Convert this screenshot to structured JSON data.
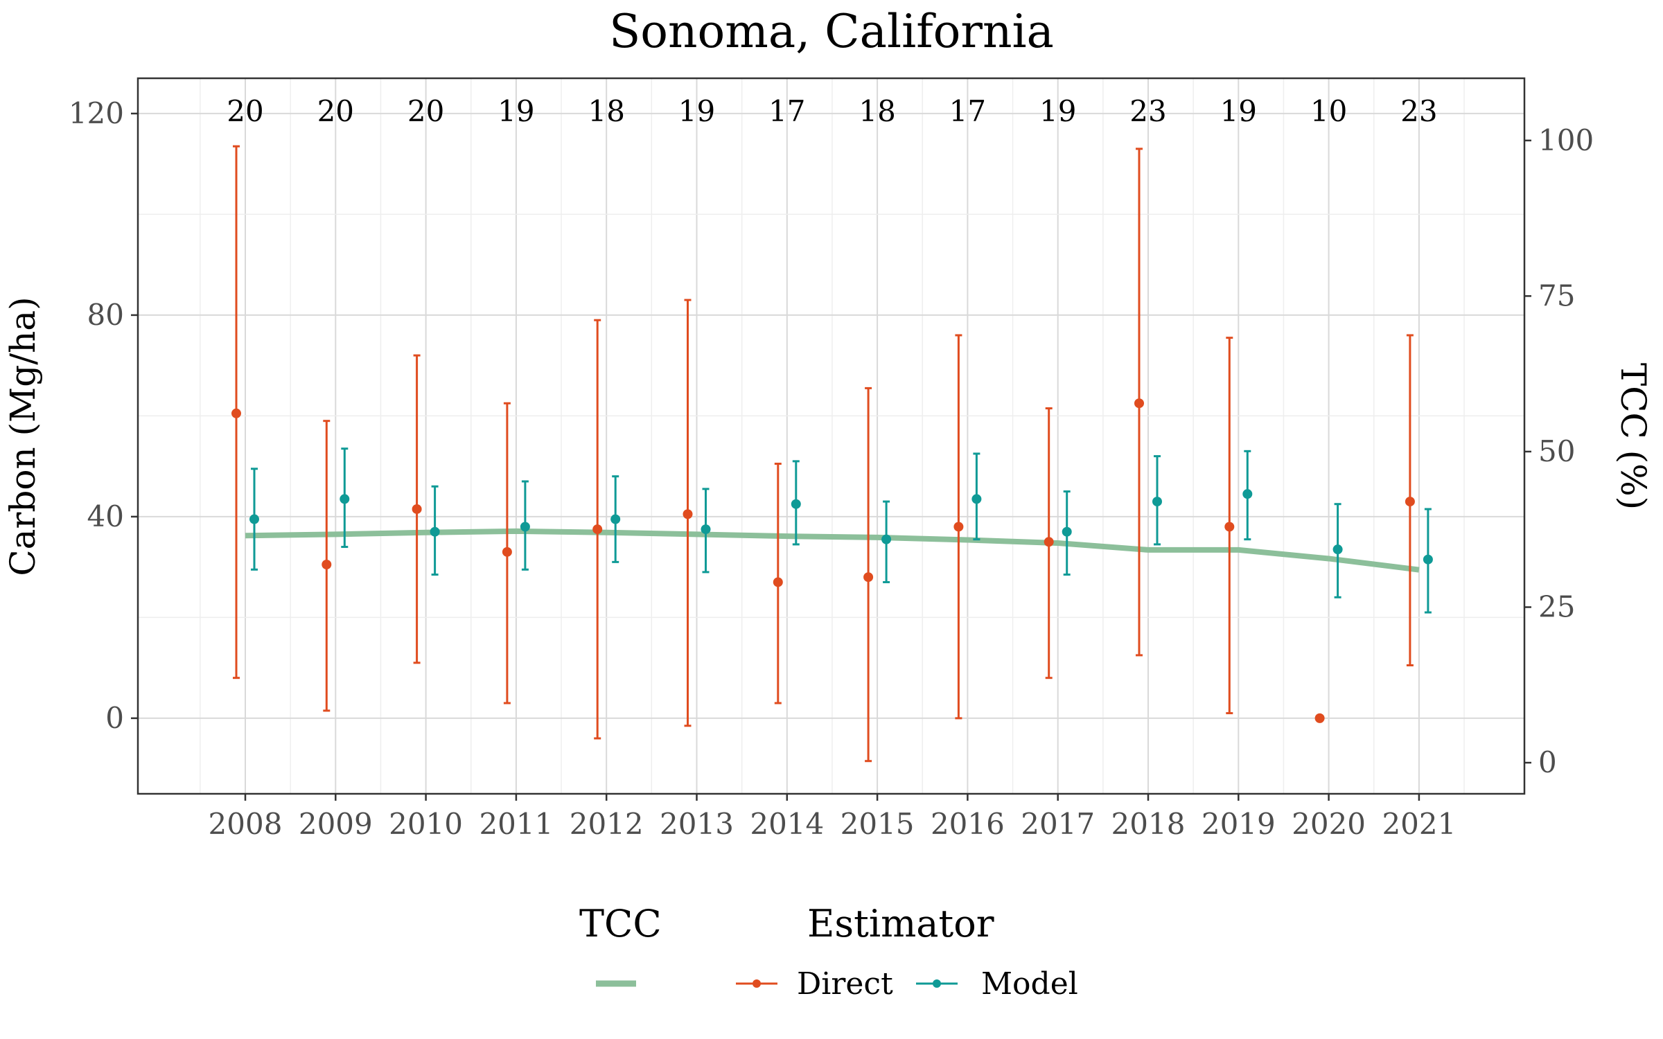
{
  "chart_data": {
    "type": "line",
    "title": "Sonoma, California",
    "xlabel": "",
    "ylabel": "Carbon (Mg/ha)",
    "y2label": "TCC (%)",
    "ylim": [
      -15,
      127
    ],
    "y2lim": [
      -5,
      110
    ],
    "yticks": [
      0,
      40,
      80,
      120
    ],
    "y2ticks": [
      0,
      25,
      50,
      75,
      100
    ],
    "grid": true,
    "legend_position": "bottom",
    "categories": [
      "2008",
      "2009",
      "2010",
      "2011",
      "2012",
      "2013",
      "2014",
      "2015",
      "2016",
      "2017",
      "2018",
      "2019",
      "2020",
      "2021"
    ],
    "n_labels": [
      "20",
      "20",
      "20",
      "19",
      "18",
      "19",
      "17",
      "18",
      "17",
      "19",
      "23",
      "19",
      "10",
      "23"
    ],
    "series": [
      {
        "name": "Direct",
        "color": "#e04c1f",
        "values": [
          60.5,
          30.5,
          41.5,
          33,
          37.5,
          40.5,
          27,
          28,
          38,
          35,
          62.5,
          38,
          0,
          43
        ],
        "lower": [
          8,
          1.5,
          11,
          3,
          -4,
          -1.5,
          3,
          -8.5,
          0,
          8,
          12.5,
          1,
          null,
          10.5
        ],
        "upper": [
          113.5,
          59,
          72,
          62.5,
          79,
          83,
          50.5,
          65.5,
          76,
          61.5,
          113,
          75.5,
          null,
          76
        ]
      },
      {
        "name": "Model",
        "color": "#0f9a96",
        "values": [
          39.5,
          43.5,
          37,
          38,
          39.5,
          37.5,
          42.5,
          35.5,
          43.5,
          37,
          43,
          44.5,
          33.5,
          31.5
        ],
        "lower": [
          29.5,
          34,
          28.5,
          29.5,
          31,
          29,
          34.5,
          27,
          35.5,
          28.5,
          34.5,
          35.5,
          24,
          21
        ],
        "upper": [
          49.5,
          53.5,
          46,
          47,
          48,
          45.5,
          51,
          43,
          52.5,
          45,
          52,
          53,
          42.5,
          41.5
        ]
      }
    ],
    "tcc": {
      "name": "TCC",
      "color": "#8cbf9a",
      "values": [
        36.5,
        36.7,
        37,
        37.2,
        37,
        36.7,
        36.4,
        36.2,
        35.8,
        35.3,
        34.2,
        34.2,
        32.8,
        31
      ]
    }
  },
  "legend": {
    "tcc_title": "TCC",
    "estimator_title": "Estimator",
    "direct_label": "Direct",
    "model_label": "Model"
  }
}
